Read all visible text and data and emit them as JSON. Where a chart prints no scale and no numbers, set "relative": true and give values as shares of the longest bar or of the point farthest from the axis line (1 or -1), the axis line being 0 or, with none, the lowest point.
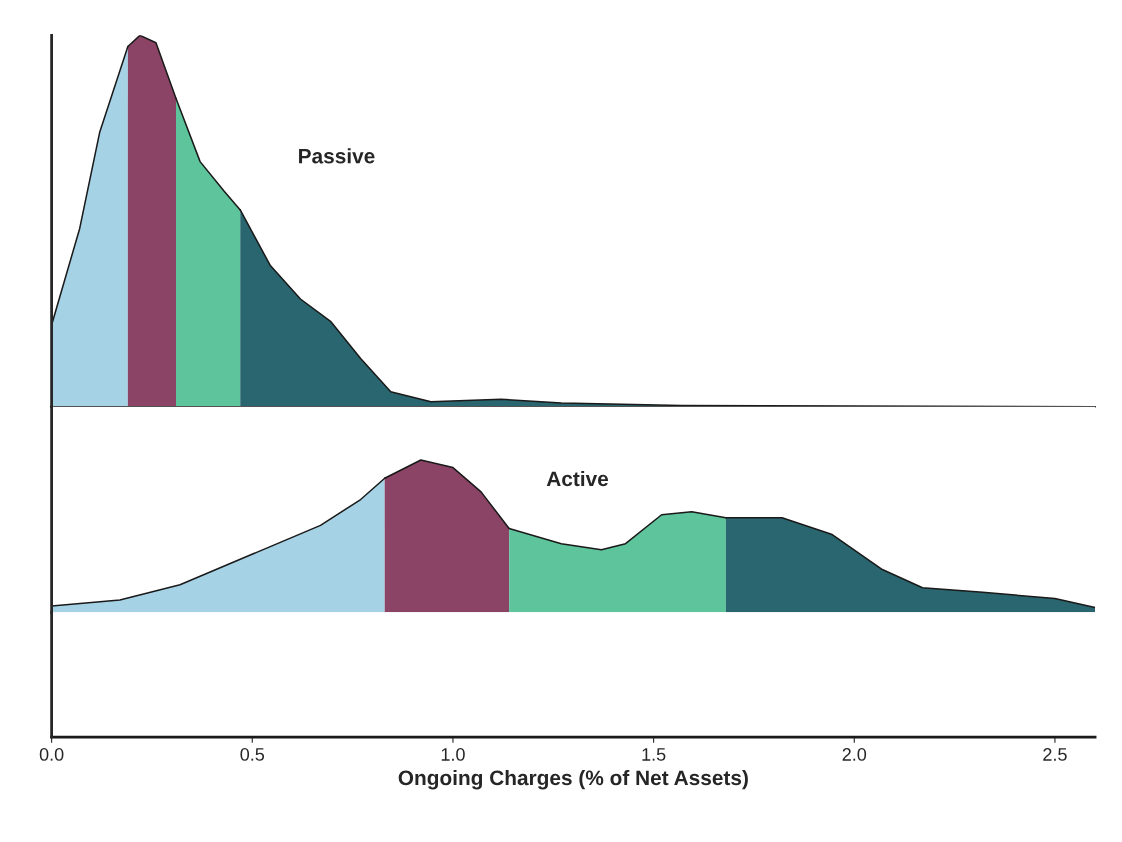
{
  "chart_data": [
    {
      "type": "area",
      "relative": true,
      "tick_labels": false,
      "xlim": [
        0,
        2.6
      ],
      "grid": false,
      "legend": false,
      "annotations": [
        "Passive"
      ],
      "series": [
        {
          "color": "#a6d2e6",
          "x": [
            0,
            0.07,
            0.12,
            0.19
          ],
          "values": [
            0.22,
            0.48,
            0.74,
            0.97
          ]
        },
        {
          "color": "#8b4466",
          "x": [
            0.19,
            0.22,
            0.26,
            0.31
          ],
          "values": [
            0.97,
            1.0,
            0.98,
            0.83
          ]
        },
        {
          "color": "#5ec49b",
          "x": [
            0.31,
            0.37,
            0.43,
            0.47
          ],
          "values": [
            0.83,
            0.66,
            0.58,
            0.53
          ]
        },
        {
          "color": "#2a6670",
          "x": [
            0.47,
            0.545,
            0.62,
            0.695,
            0.77,
            0.845,
            0.945,
            1.12,
            1.27,
            1.57,
            2.6
          ],
          "values": [
            0.53,
            0.38,
            0.29,
            0.23,
            0.13,
            0.04,
            0.013,
            0.02,
            0.01,
            0.003,
            0
          ]
        }
      ]
    },
    {
      "type": "area",
      "relative": true,
      "tick_labels": "x",
      "xlim": [
        0,
        2.6
      ],
      "grid": false,
      "legend": false,
      "xticks": [
        {
          "value": 0,
          "label": "0.0"
        },
        0.5,
        {
          "value": 1,
          "label": "1.0"
        },
        1.5,
        {
          "value": 2,
          "label": "2.0"
        },
        2.5
      ],
      "xlabel": "Ongoing Charges (% of Net Assets)",
      "annotations": [
        "Active"
      ],
      "series": [
        {
          "color": "#a6d2e6",
          "x": [
            0,
            0.17,
            0.32,
            0.495,
            0.67,
            0.77,
            0.83
          ],
          "values": [
            0.04,
            0.08,
            0.18,
            0.375,
            0.57,
            0.74,
            0.88
          ]
        },
        {
          "color": "#8b4466",
          "x": [
            0.83,
            0.92,
            1.0,
            1.07,
            1.14
          ],
          "values": [
            0.88,
            1.0,
            0.95,
            0.79,
            0.55
          ]
        },
        {
          "color": "#5ec49b",
          "x": [
            1.14,
            1.27,
            1.37,
            1.43,
            1.52,
            1.595,
            1.68
          ],
          "values": [
            0.55,
            0.45,
            0.41,
            0.45,
            0.64,
            0.66,
            0.62
          ]
        },
        {
          "color": "#2a6670",
          "x": [
            1.68,
            1.82,
            1.945,
            2.07,
            2.17,
            2.32,
            2.5,
            2.6
          ],
          "values": [
            0.62,
            0.62,
            0.51,
            0.28,
            0.16,
            0.13,
            0.09,
            0.03
          ]
        }
      ]
    }
  ]
}
